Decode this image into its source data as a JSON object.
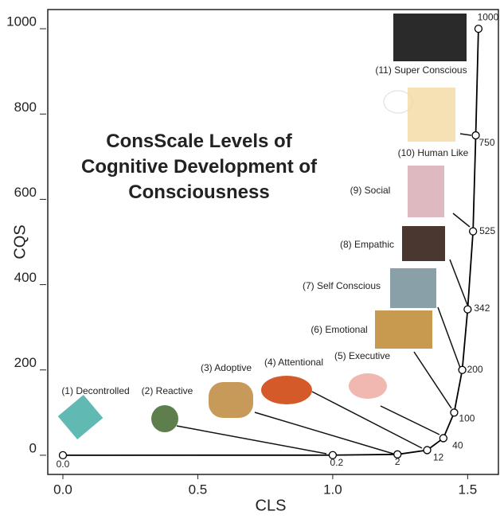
{
  "chart_data": {
    "type": "line",
    "title": "ConsScale Levels of Cognitive Development of Consciousness",
    "x_label": "CLS",
    "y_label": "CQS",
    "x": [
      0,
      1.0,
      1.24,
      1.35,
      1.41,
      1.45,
      1.48,
      1.5,
      1.52,
      1.53,
      1.54
    ],
    "series": [
      {
        "color": "#000000",
        "values": [
          0,
          0.2,
          2,
          12,
          40,
          100,
          200,
          342,
          525,
          750,
          1000
        ],
        "value_labels": [
          "0.0",
          "0.2",
          "2",
          "12",
          "40",
          "100",
          "200",
          "342",
          "525",
          "750",
          "1000"
        ]
      }
    ],
    "annotations": [
      "(1) Decontrolled",
      "(2) Reactive",
      "(3) Adoptive",
      "(4) Attentional",
      "(5) Executive",
      "(6) Emotional",
      "(7) Self Conscious",
      "(8) Empathic",
      "(9) Social",
      "(10) Human Like",
      "(11) Super Conscious"
    ],
    "xlim": [
      -0.056,
      1.614
    ],
    "ylim": [
      -45,
      1045
    ],
    "xticks": [
      {
        "value": 0,
        "label": "0.0"
      },
      1.5,
      {
        "value": 0.5,
        "label": "0.5"
      },
      {
        "value": 1,
        "label": "1.0"
      }
    ],
    "yticks": [
      0,
      200,
      400,
      600,
      800,
      1000
    ]
  }
}
